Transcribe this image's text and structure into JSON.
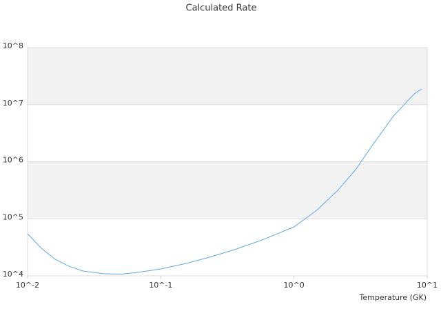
{
  "chart_data": {
    "type": "line",
    "title": "Calculated Rate",
    "x_label": "Temperature (GK)",
    "x": [
      0.01,
      0.0127,
      0.0161,
      0.0204,
      0.026,
      0.037,
      0.05,
      0.067,
      0.1,
      0.155,
      0.222,
      0.358,
      0.576,
      1,
      1.48,
      2.13,
      2.9,
      3.9,
      5.6,
      8.0,
      9.1
    ],
    "series": [
      {
        "color": "#5fa6e6",
        "values": [
          54600,
          30400,
          19500,
          14800,
          12150,
          10900,
          10700,
          11500,
          13200,
          16500,
          20600,
          28800,
          42500,
          72100,
          140600,
          315000,
          726000,
          1980000,
          6370000,
          15500000,
          18800000
        ]
      }
    ],
    "xlim": [
      0.01,
      10
    ],
    "ylim": [
      10000,
      100000000
    ],
    "xlog": true,
    "ylog": true,
    "xticks": [
      {
        "value": 0.01,
        "label": "10^-2"
      },
      {
        "value": 0.1,
        "label": "10^-1"
      },
      {
        "value": 1,
        "label": "10^0"
      },
      {
        "value": 10,
        "label": "10^1"
      }
    ],
    "yticks": [
      {
        "value": 10000,
        "label": "10^4"
      },
      {
        "value": 100000,
        "label": "10^5"
      },
      {
        "value": 1000000,
        "label": "10^6"
      },
      {
        "value": 10000000,
        "label": "10^7"
      },
      {
        "value": 100000000,
        "label": "10^8"
      }
    ],
    "grid": true,
    "banded": true
  }
}
